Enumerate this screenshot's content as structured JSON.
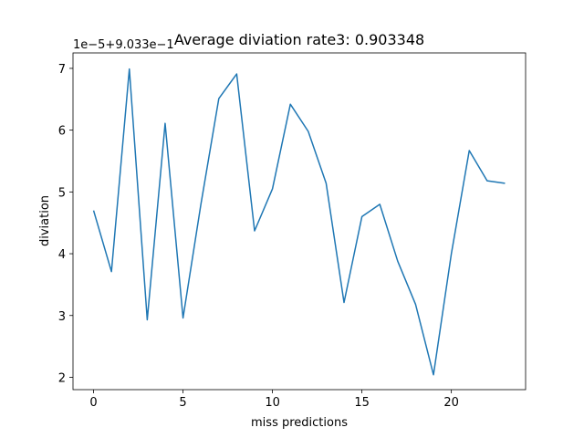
{
  "chart_data": {
    "type": "line",
    "title": "Average diviation rate3: 0.903348",
    "xlabel": "miss predictions",
    "ylabel": "diviation",
    "y_offset_label": "1e−5+9.033e−1",
    "x_ticks": [
      0,
      5,
      10,
      15,
      20
    ],
    "y_ticks": [
      2,
      3,
      4,
      5,
      6,
      7
    ],
    "xlim": [
      -1.15,
      24.15
    ],
    "ylim": [
      1.8,
      7.25
    ],
    "y_units_note": "y tick values are in units of 1e-5 offset by 9.033e-1",
    "grid": false,
    "series": [
      {
        "color": "#1f77b4",
        "x": [
          0,
          1,
          2,
          3,
          4,
          5,
          6,
          7,
          8,
          9,
          10,
          11,
          12,
          13,
          14,
          15,
          16,
          17,
          18,
          19,
          20,
          21,
          22,
          23
        ],
        "values": [
          4.7,
          3.71,
          6.99,
          2.93,
          6.11,
          2.96,
          4.8,
          6.51,
          6.91,
          4.37,
          5.05,
          6.42,
          5.98,
          5.14,
          3.21,
          4.6,
          4.8,
          3.88,
          3.18,
          2.04,
          4.0,
          5.67,
          5.18,
          5.14
        ]
      }
    ]
  }
}
